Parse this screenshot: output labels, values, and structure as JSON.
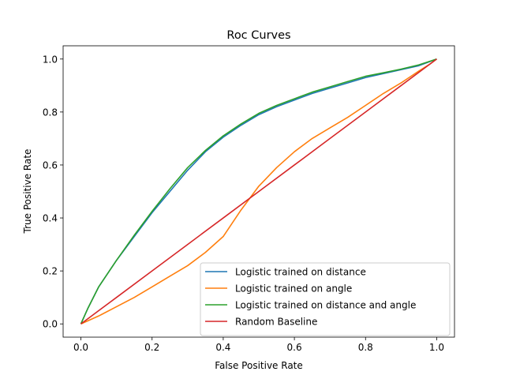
{
  "chart_data": {
    "type": "line",
    "title": "Roc Curves",
    "xlabel": "False Positive Rate",
    "ylabel": "True Positive Rate",
    "xlim": [
      -0.05,
      1.05
    ],
    "ylim": [
      -0.05,
      1.05
    ],
    "xticks": [
      {
        "value": 0.0,
        "label": "0.0"
      },
      {
        "value": 0.2,
        "label": "0.2"
      },
      {
        "value": 0.4,
        "label": "0.4"
      },
      {
        "value": 0.6,
        "label": "0.6"
      },
      {
        "value": 0.8,
        "label": "0.8"
      },
      {
        "value": 1.0,
        "label": "1.0"
      }
    ],
    "yticks": [
      {
        "value": 0.0,
        "label": "0.0"
      },
      {
        "value": 0.2,
        "label": "0.2"
      },
      {
        "value": 0.4,
        "label": "0.4"
      },
      {
        "value": 0.6,
        "label": "0.6"
      },
      {
        "value": 0.8,
        "label": "0.8"
      },
      {
        "value": 1.0,
        "label": "1.0"
      }
    ],
    "grid": false,
    "legend_position": "lower-right",
    "series": [
      {
        "name": "Logistic trained on distance",
        "color": "#1f77b4",
        "x": [
          0.0,
          0.02,
          0.05,
          0.1,
          0.15,
          0.2,
          0.25,
          0.3,
          0.35,
          0.4,
          0.45,
          0.5,
          0.55,
          0.6,
          0.65,
          0.7,
          0.75,
          0.8,
          0.85,
          0.9,
          0.95,
          1.0
        ],
        "y": [
          0.0,
          0.06,
          0.14,
          0.24,
          0.33,
          0.42,
          0.5,
          0.58,
          0.65,
          0.705,
          0.75,
          0.79,
          0.82,
          0.845,
          0.87,
          0.89,
          0.91,
          0.93,
          0.945,
          0.96,
          0.975,
          1.0
        ]
      },
      {
        "name": "Logistic trained on angle",
        "color": "#ff7f0e",
        "x": [
          0.0,
          0.05,
          0.1,
          0.15,
          0.2,
          0.25,
          0.3,
          0.35,
          0.4,
          0.45,
          0.5,
          0.55,
          0.6,
          0.65,
          0.7,
          0.75,
          0.8,
          0.85,
          0.9,
          0.95,
          0.98,
          1.0
        ],
        "y": [
          0.0,
          0.03,
          0.065,
          0.1,
          0.14,
          0.18,
          0.22,
          0.27,
          0.33,
          0.43,
          0.52,
          0.59,
          0.65,
          0.7,
          0.74,
          0.78,
          0.825,
          0.87,
          0.91,
          0.955,
          0.98,
          1.0
        ]
      },
      {
        "name": "Logistic trained on distance and angle",
        "color": "#2ca02c",
        "x": [
          0.0,
          0.02,
          0.05,
          0.1,
          0.15,
          0.2,
          0.25,
          0.3,
          0.35,
          0.4,
          0.45,
          0.5,
          0.55,
          0.6,
          0.65,
          0.7,
          0.75,
          0.8,
          0.85,
          0.9,
          0.95,
          1.0
        ],
        "y": [
          0.0,
          0.06,
          0.14,
          0.24,
          0.335,
          0.425,
          0.51,
          0.59,
          0.655,
          0.71,
          0.755,
          0.795,
          0.825,
          0.85,
          0.875,
          0.895,
          0.915,
          0.935,
          0.948,
          0.962,
          0.978,
          1.0
        ]
      },
      {
        "name": "Random Baseline",
        "color": "#d62728",
        "x": [
          0.0,
          0.1,
          0.2,
          0.3,
          0.4,
          0.5,
          0.6,
          0.7,
          0.8,
          0.9,
          1.0
        ],
        "y": [
          0.0,
          0.1,
          0.2,
          0.3,
          0.4,
          0.5,
          0.6,
          0.7,
          0.8,
          0.9,
          1.0
        ]
      }
    ]
  }
}
